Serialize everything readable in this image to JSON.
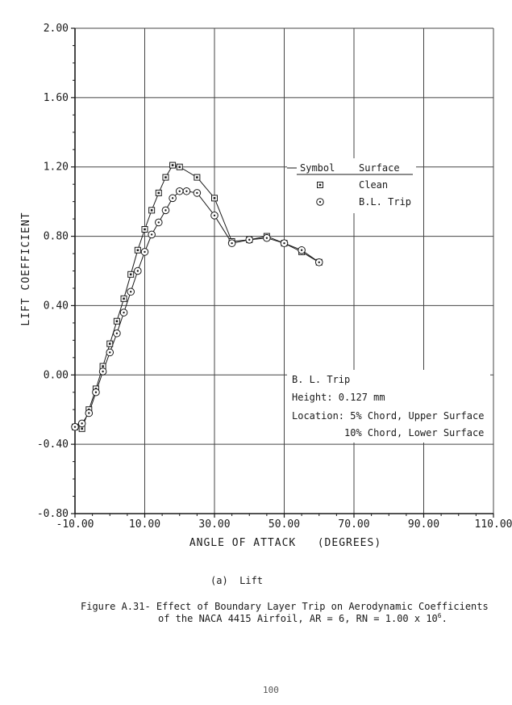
{
  "chart_data": {
    "type": "line",
    "xlabel": "ANGLE OF ATTACK   (DEGREES)",
    "ylabel": "LIFT COEFFICIENT",
    "xlim": [
      -10,
      110
    ],
    "ylim": [
      -0.8,
      2.0
    ],
    "x_ticks": [
      -10,
      10,
      30,
      50,
      70,
      90,
      110
    ],
    "x_tick_labels": [
      "-10.00",
      "10.00",
      "30.00",
      "50.00",
      "70.00",
      "90.00",
      "110.00"
    ],
    "y_ticks": [
      -0.8,
      -0.4,
      0.0,
      0.4,
      0.8,
      1.2,
      1.6,
      2.0
    ],
    "y_tick_labels": [
      "-0.80",
      "-0.40",
      "0.00",
      "0.40",
      "0.80",
      "1.20",
      "1.60",
      "2.00"
    ],
    "grid": true,
    "legend": {
      "header_symbol": "Symbol",
      "header_surface": "Surface",
      "placement": "right-upper"
    },
    "series": [
      {
        "name": "Clean",
        "marker": "square",
        "x": [
          -10,
          -8,
          -6,
          -4,
          -2,
          0,
          2,
          4,
          6,
          8,
          10,
          12,
          14,
          16,
          18,
          20,
          25,
          30,
          35,
          40,
          45,
          50,
          55,
          60
        ],
        "y": [
          -0.3,
          -0.31,
          -0.2,
          -0.08,
          0.05,
          0.18,
          0.31,
          0.44,
          0.58,
          0.72,
          0.84,
          0.95,
          1.05,
          1.14,
          1.21,
          1.2,
          1.14,
          1.02,
          0.77,
          0.78,
          0.8,
          0.76,
          0.71,
          0.65
        ]
      },
      {
        "name": "B.L. Trip",
        "marker": "circle",
        "x": [
          -10,
          -8,
          -6,
          -4,
          -2,
          0,
          2,
          4,
          6,
          8,
          10,
          12,
          14,
          16,
          18,
          20,
          22,
          25,
          30,
          35,
          40,
          45,
          50,
          55,
          60
        ],
        "y": [
          -0.3,
          -0.28,
          -0.22,
          -0.1,
          0.02,
          0.13,
          0.24,
          0.36,
          0.48,
          0.6,
          0.71,
          0.81,
          0.88,
          0.95,
          1.02,
          1.06,
          1.06,
          1.05,
          0.92,
          0.76,
          0.78,
          0.79,
          0.76,
          0.72,
          0.65
        ]
      }
    ],
    "annotation": {
      "title": "B. L. Trip",
      "height": "Height: 0.127 mm",
      "location1": "Location: 5% Chord, Upper Surface",
      "location2": "10% Chord, Lower Surface"
    }
  },
  "caption": {
    "subfigure": "(a)  Lift",
    "figure_line1": "Figure A.31- Effect of Boundary Layer Trip on Aerodynamic Coefficients",
    "figure_line2_pre": "of the NACA 4415 Airfoil, AR = 6, RN = 1.00 x 10",
    "figure_line2_exp": "6",
    "figure_line2_post": ".",
    "page_number": "100"
  },
  "colors": {
    "ink": "#1a1a1a",
    "grid": "#444444",
    "background": "#ffffff"
  }
}
